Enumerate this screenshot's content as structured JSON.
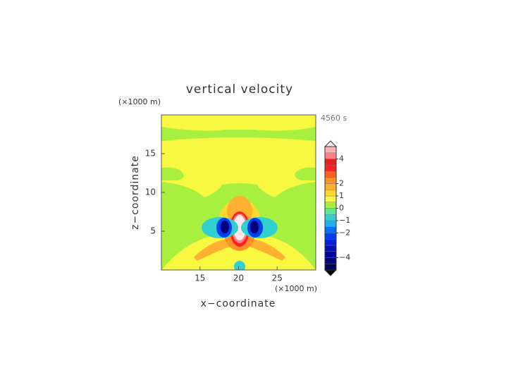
{
  "chart_data": {
    "type": "contour",
    "title": "vertical velocity",
    "x_label": "x−coordinate",
    "y_label": "z−coordinate",
    "x_unit": "(×1000 m)",
    "y_unit": "(×1000 m)",
    "time_label": "4560 s",
    "xlim": [
      10,
      30
    ],
    "xticks": [
      15,
      20,
      25
    ],
    "ylim": [
      0,
      20
    ],
    "yticks": [
      5,
      10,
      15
    ],
    "colorbar": {
      "lim": [
        -5,
        5
      ],
      "ticks": [
        {
          "value": -4,
          "label": "−4"
        },
        {
          "value": -2,
          "label": "−2"
        },
        {
          "value": -1,
          "label": "−1"
        },
        0,
        1,
        2,
        4
      ],
      "colors": [
        "#000050",
        "#00007a",
        "#0000a0",
        "#0010c0",
        "#0020dc",
        "#0040f0",
        "#0070ff",
        "#20b0f0",
        "#30d0d0",
        "#60e890",
        "#a8f040",
        "#f8f840",
        "#ffd830",
        "#ffb030",
        "#ff9028",
        "#ff6020",
        "#ff2020",
        "#e82020",
        "#ff8080",
        "#ffb0b0"
      ]
    }
  }
}
